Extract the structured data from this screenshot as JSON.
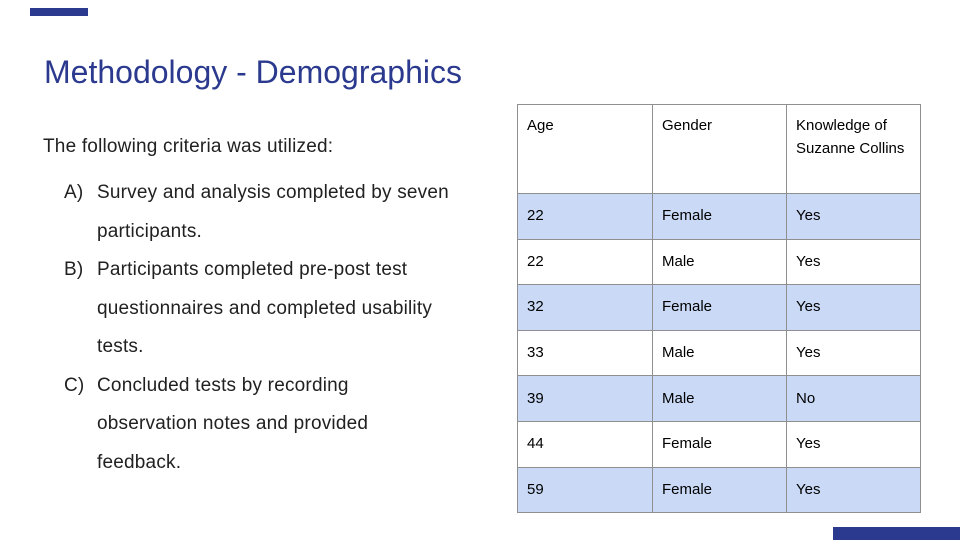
{
  "slide": {
    "title": "Methodology - Demographics",
    "colors": {
      "accent_blue": "#2b3a8e",
      "title_text": "#2b3a8e",
      "body_text": "#212121",
      "table_alt_row": "#c9d9f6",
      "table_border": "#8f8f8f"
    },
    "body": {
      "intro": "The following criteria was utilized:",
      "items": [
        {
          "marker": "A)",
          "lines": [
            "Survey and analysis completed by seven",
            "participants."
          ]
        },
        {
          "marker": "B)",
          "lines": [
            "Participants completed pre-post test",
            "questionnaires and completed usability",
            "tests."
          ]
        },
        {
          "marker": "C)",
          "lines": [
            "Concluded tests by recording",
            "observation notes and provided",
            "feedback."
          ]
        }
      ]
    },
    "table": {
      "headers": [
        "Age",
        "Gender",
        "Knowledge of Suzanne Collins"
      ],
      "rows": [
        [
          "22",
          "Female",
          "Yes"
        ],
        [
          "22",
          "Male",
          "Yes"
        ],
        [
          "32",
          "Female",
          "Yes"
        ],
        [
          "33",
          "Male",
          "Yes"
        ],
        [
          "39",
          "Male",
          "No"
        ],
        [
          "44",
          "Female",
          "Yes"
        ],
        [
          "59",
          "Female",
          "Yes"
        ]
      ]
    }
  }
}
